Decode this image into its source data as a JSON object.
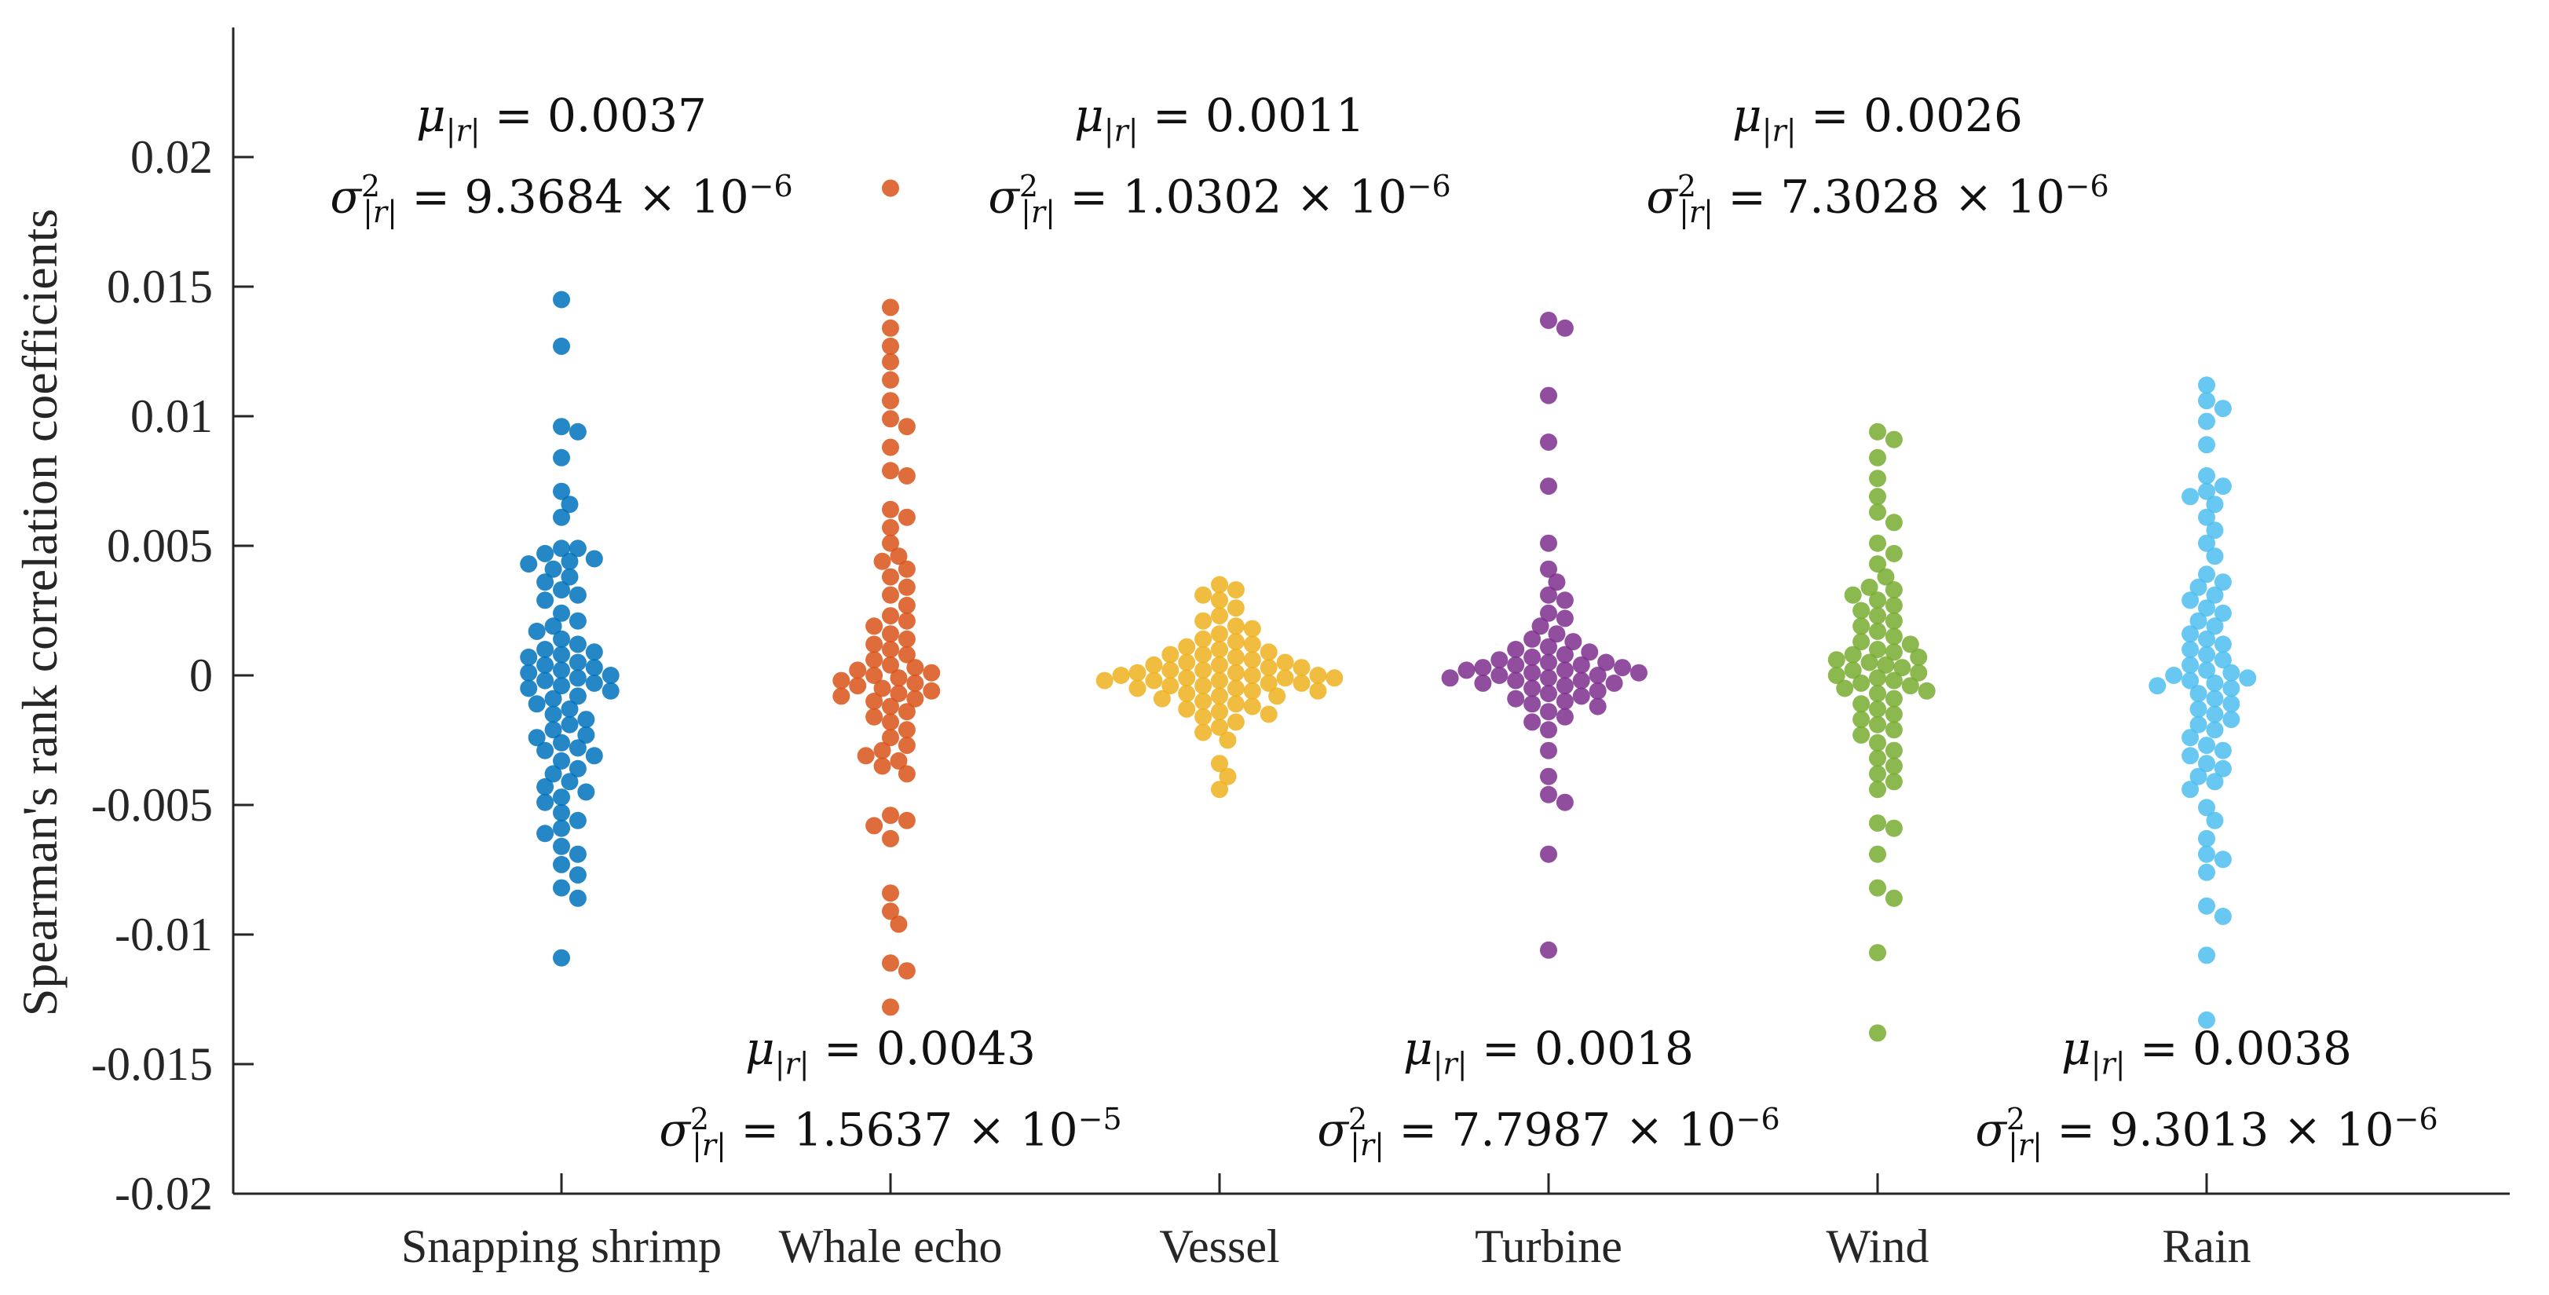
{
  "chart_data": {
    "type": "scatter",
    "title": "",
    "xlabel": "",
    "ylabel": "Spearman's rank correlation coefficients",
    "ylim": [
      -0.02,
      0.025
    ],
    "yticks": [
      -0.02,
      -0.015,
      -0.01,
      -0.005,
      0,
      0.005,
      0.01,
      0.015,
      0.02
    ],
    "ytick_labels": [
      "-0.02",
      "-0.015",
      "-0.01",
      "-0.005",
      "0",
      "0.005",
      "0.01",
      "0.015",
      "0.02"
    ],
    "categories": [
      "Snapping shrimp",
      "Whale echo",
      "Vessel",
      "Turbine",
      "Wind",
      "Rain"
    ],
    "series": [
      {
        "name": "Snapping shrimp",
        "color": "#0072BD",
        "mean_label": "0.0037",
        "variance_label": "9.3684",
        "variance_exp": "−6",
        "annotation_position": "top",
        "values": [
          0.0145,
          0.0127,
          0.0096,
          0.0094,
          0.0084,
          0.0071,
          0.0066,
          0.0061,
          0.0049,
          0.0049,
          0.0047,
          0.0045,
          0.0044,
          0.0043,
          0.0041,
          0.0038,
          0.0036,
          0.0033,
          0.0031,
          0.0029,
          0.0024,
          0.0021,
          0.0019,
          0.0017,
          0.0014,
          0.0012,
          0.001,
          0.0009,
          0.0008,
          0.0007,
          0.0005,
          0.0004,
          0.0003,
          0.0002,
          0.0001,
          0.0,
          -0.0001,
          -0.0002,
          -0.0003,
          -0.0004,
          -0.0005,
          -0.0006,
          -0.0008,
          -0.0009,
          -0.0011,
          -0.0013,
          -0.0015,
          -0.0017,
          -0.0019,
          -0.0021,
          -0.0023,
          -0.0024,
          -0.0026,
          -0.0028,
          -0.0029,
          -0.0031,
          -0.0033,
          -0.0036,
          -0.0038,
          -0.0041,
          -0.0043,
          -0.0045,
          -0.0047,
          -0.0049,
          -0.0053,
          -0.0056,
          -0.0059,
          -0.0061,
          -0.0066,
          -0.0069,
          -0.0073,
          -0.0077,
          -0.0082,
          -0.0086,
          -0.0109
        ]
      },
      {
        "name": "Whale echo",
        "color": "#D95319",
        "mean_label": "0.0043",
        "variance_label": "1.5637",
        "variance_exp": "−5",
        "annotation_position": "bottom",
        "values": [
          0.0188,
          0.0142,
          0.0134,
          0.0127,
          0.0121,
          0.0114,
          0.0106,
          0.0099,
          0.0096,
          0.0088,
          0.0079,
          0.0077,
          0.0064,
          0.0061,
          0.0057,
          0.0051,
          0.0046,
          0.0044,
          0.0041,
          0.0038,
          0.0034,
          0.0031,
          0.0027,
          0.0023,
          0.0021,
          0.0019,
          0.0016,
          0.0014,
          0.0012,
          0.001,
          0.0008,
          0.0006,
          0.0004,
          0.0003,
          0.0002,
          0.0001,
          0.0,
          -0.0001,
          -0.0002,
          -0.0003,
          -0.0004,
          -0.0005,
          -0.0006,
          -0.0007,
          -0.0008,
          -0.0009,
          -0.001,
          -0.0012,
          -0.0014,
          -0.0016,
          -0.0018,
          -0.0021,
          -0.0024,
          -0.0027,
          -0.0029,
          -0.0031,
          -0.0033,
          -0.0035,
          -0.0038,
          -0.0054,
          -0.0056,
          -0.0058,
          -0.0063,
          -0.0084,
          -0.0091,
          -0.0096,
          -0.0111,
          -0.0114,
          -0.0128
        ]
      },
      {
        "name": "Vessel",
        "color": "#EDB120",
        "mean_label": "0.0011",
        "variance_label": "1.0302",
        "variance_exp": "−6",
        "annotation_position": "top",
        "values": [
          0.0035,
          0.0033,
          0.0031,
          0.0029,
          0.0026,
          0.0023,
          0.0021,
          0.0019,
          0.0018,
          0.0016,
          0.0014,
          0.0013,
          0.0012,
          0.0011,
          0.001,
          0.0009,
          0.0008,
          0.0008,
          0.0007,
          0.0006,
          0.0005,
          0.0005,
          0.0004,
          0.0004,
          0.0003,
          0.0003,
          0.0002,
          0.0002,
          0.0001,
          0.0001,
          0.0,
          0.0,
          0.0,
          -0.0001,
          -0.0001,
          -0.0001,
          -0.0002,
          -0.0002,
          -0.0002,
          -0.0003,
          -0.0003,
          -0.0004,
          -0.0004,
          -0.0005,
          -0.0005,
          -0.0006,
          -0.0006,
          -0.0007,
          -0.0008,
          -0.0008,
          -0.0009,
          -0.001,
          -0.0011,
          -0.0012,
          -0.0013,
          -0.0014,
          -0.0015,
          -0.0016,
          -0.0018,
          -0.002,
          -0.0022,
          -0.0025,
          -0.0034,
          -0.0039,
          -0.0044
        ]
      },
      {
        "name": "Turbine",
        "color": "#7E2F8E",
        "mean_label": "0.0018",
        "variance_label": "7.7987",
        "variance_exp": "−6",
        "annotation_position": "bottom",
        "values": [
          0.0137,
          0.0134,
          0.0108,
          0.009,
          0.0073,
          0.0051,
          0.0041,
          0.0036,
          0.0031,
          0.0029,
          0.0024,
          0.0022,
          0.0019,
          0.0016,
          0.0014,
          0.0013,
          0.0011,
          0.001,
          0.0009,
          0.0008,
          0.0007,
          0.0006,
          0.0005,
          0.0005,
          0.0004,
          0.0004,
          0.0003,
          0.0003,
          0.0002,
          0.0002,
          0.0001,
          0.0001,
          0.0,
          0.0,
          -0.0001,
          -0.0001,
          -0.0002,
          -0.0002,
          -0.0003,
          -0.0003,
          -0.0004,
          -0.0005,
          -0.0006,
          -0.0007,
          -0.0008,
          -0.0009,
          -0.001,
          -0.0011,
          -0.0012,
          -0.0014,
          -0.0016,
          -0.0018,
          -0.0021,
          -0.0029,
          -0.0039,
          -0.0046,
          -0.0049,
          -0.0069,
          -0.0106
        ]
      },
      {
        "name": "Wind",
        "color": "#77AC30",
        "mean_label": "0.0026",
        "variance_label": "7.3028",
        "variance_exp": "−6",
        "annotation_position": "top",
        "values": [
          0.0094,
          0.0091,
          0.0084,
          0.0076,
          0.0069,
          0.0063,
          0.0059,
          0.0051,
          0.0047,
          0.0043,
          0.0038,
          0.0034,
          0.0033,
          0.0031,
          0.0029,
          0.0027,
          0.0025,
          0.0023,
          0.0021,
          0.0019,
          0.0017,
          0.0015,
          0.0013,
          0.0012,
          0.001,
          0.0009,
          0.0008,
          0.0007,
          0.0006,
          0.0005,
          0.0004,
          0.0003,
          0.0002,
          0.0001,
          0.0,
          -0.0001,
          -0.0002,
          -0.0003,
          -0.0004,
          -0.0005,
          -0.0006,
          -0.0007,
          -0.0009,
          -0.0011,
          -0.0013,
          -0.0015,
          -0.0017,
          -0.0019,
          -0.0021,
          -0.0023,
          -0.0026,
          -0.0029,
          -0.0032,
          -0.0035,
          -0.0038,
          -0.0041,
          -0.0044,
          -0.0057,
          -0.0059,
          -0.0069,
          -0.0082,
          -0.0086,
          -0.0107,
          -0.0138
        ]
      },
      {
        "name": "Rain",
        "color": "#4DBEEE",
        "mean_label": "0.0038",
        "variance_label": "9.3013",
        "variance_exp": "−6",
        "annotation_position": "bottom",
        "values": [
          0.0112,
          0.0106,
          0.0103,
          0.0098,
          0.0089,
          0.0077,
          0.0073,
          0.0071,
          0.0069,
          0.0066,
          0.0061,
          0.0056,
          0.0051,
          0.0046,
          0.0039,
          0.0036,
          0.0034,
          0.0031,
          0.0029,
          0.0026,
          0.0024,
          0.0021,
          0.0019,
          0.0016,
          0.0014,
          0.0012,
          0.001,
          0.0008,
          0.0006,
          0.0004,
          0.0002,
          0.0001,
          0.0,
          -0.0001,
          -0.0002,
          -0.0003,
          -0.0004,
          -0.0005,
          -0.0007,
          -0.0009,
          -0.0011,
          -0.0013,
          -0.0015,
          -0.0017,
          -0.0019,
          -0.0021,
          -0.0024,
          -0.0027,
          -0.0029,
          -0.0031,
          -0.0034,
          -0.0036,
          -0.0039,
          -0.0041,
          -0.0044,
          -0.0051,
          -0.0056,
          -0.0063,
          -0.0069,
          -0.0071,
          -0.0076,
          -0.0089,
          -0.0093,
          -0.0108,
          -0.0133
        ]
      }
    ]
  }
}
